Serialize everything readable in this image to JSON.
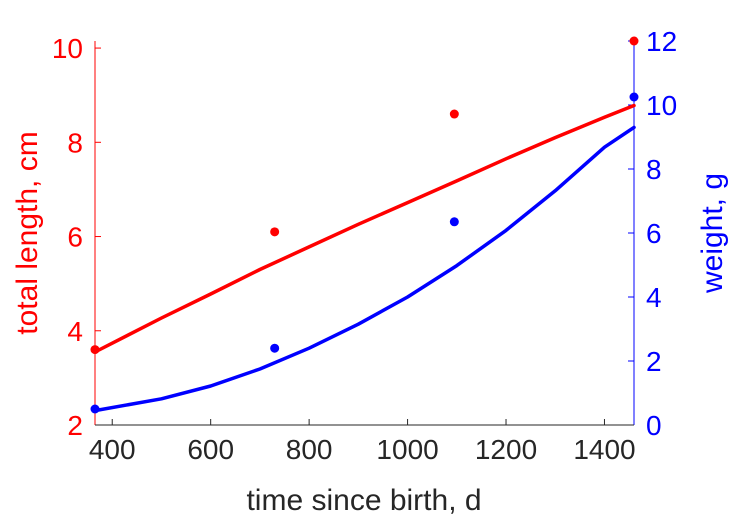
{
  "chart_data": {
    "type": "line",
    "xlabel": "time since birth, d",
    "xlim": [
      365,
      1460
    ],
    "xticks": [
      400,
      600,
      800,
      1000,
      1200,
      1400
    ],
    "left_axis": {
      "label": "total length, cm",
      "color": "#ff0000",
      "ylim": [
        2,
        10.15
      ],
      "ticks": [
        2,
        4,
        6,
        8,
        10
      ]
    },
    "right_axis": {
      "label": "weight, g",
      "color": "#0000ff",
      "ylim": [
        0,
        12
      ],
      "ticks": [
        0,
        2,
        4,
        6,
        8,
        10,
        12
      ]
    },
    "series": [
      {
        "axis": "left",
        "color": "#ff0000",
        "points": [
          [
            365,
            3.6
          ],
          [
            730,
            6.1
          ],
          [
            1095,
            8.6
          ],
          [
            1460,
            10.15
          ]
        ],
        "fit": [
          [
            365,
            3.55
          ],
          [
            500,
            4.27
          ],
          [
            600,
            4.78
          ],
          [
            700,
            5.3
          ],
          [
            800,
            5.78
          ],
          [
            900,
            6.26
          ],
          [
            1000,
            6.72
          ],
          [
            1100,
            7.18
          ],
          [
            1200,
            7.65
          ],
          [
            1300,
            8.1
          ],
          [
            1400,
            8.53
          ],
          [
            1460,
            8.78
          ]
        ]
      },
      {
        "axis": "right",
        "color": "#0000ff",
        "points": [
          [
            365,
            0.5
          ],
          [
            730,
            2.4
          ],
          [
            1095,
            6.35
          ],
          [
            1460,
            10.25
          ]
        ],
        "fit": [
          [
            365,
            0.45
          ],
          [
            500,
            0.82
          ],
          [
            600,
            1.22
          ],
          [
            700,
            1.75
          ],
          [
            800,
            2.4
          ],
          [
            900,
            3.15
          ],
          [
            1000,
            4.0
          ],
          [
            1100,
            4.98
          ],
          [
            1200,
            6.08
          ],
          [
            1300,
            7.32
          ],
          [
            1400,
            8.68
          ],
          [
            1460,
            9.3
          ]
        ]
      }
    ]
  }
}
